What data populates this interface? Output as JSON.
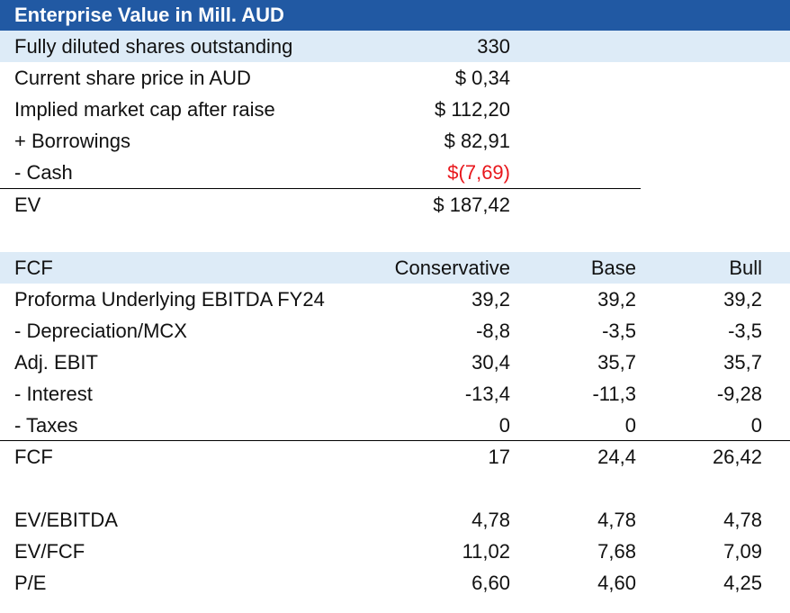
{
  "ev_section": {
    "title": "Enterprise Value in Mill. AUD",
    "rows": [
      {
        "label": "Fully diluted shares outstanding",
        "value": "330"
      },
      {
        "label": "Current share price in AUD",
        "value": "$ 0,34"
      },
      {
        "label": "Implied market cap after raise",
        "value": "$ 112,20"
      },
      {
        "label": "+ Borrowings",
        "value": "$ 82,91"
      },
      {
        "label": "- Cash",
        "value": "$(7,69)"
      }
    ],
    "total": {
      "label": "EV",
      "value": "$ 187,42"
    }
  },
  "fcf_section": {
    "header": {
      "label": "FCF",
      "col1": "Conservative",
      "col2": "Base",
      "col3": "Bull"
    },
    "rows": [
      {
        "label": "Proforma Underlying EBITDA FY24",
        "c1": "39,2",
        "c2": "39,2",
        "c3": "39,2"
      },
      {
        "label": "- Depreciation/MCX",
        "c1": "-8,8",
        "c2": "-3,5",
        "c3": "-3,5"
      },
      {
        "label": "Adj. EBIT",
        "c1": "30,4",
        "c2": "35,7",
        "c3": "35,7"
      },
      {
        "label": "- Interest",
        "c1": "-13,4",
        "c2": "-11,3",
        "c3": "-9,28"
      },
      {
        "label": "- Taxes",
        "c1": "0",
        "c2": "0",
        "c3": "0"
      }
    ],
    "total": {
      "label": "FCF",
      "c1": "17",
      "c2": "24,4",
      "c3": "26,42"
    }
  },
  "multiples": {
    "rows": [
      {
        "label": "EV/EBITDA",
        "c1": "4,78",
        "c2": "4,78",
        "c3": "4,78"
      },
      {
        "label": "EV/FCF",
        "c1": "11,02",
        "c2": "7,68",
        "c3": "7,09"
      },
      {
        "label": "P/E",
        "c1": "6,60",
        "c2": "4,60",
        "c3": "4,25"
      }
    ]
  },
  "colors": {
    "title_bg": "#2159a3",
    "shade": "#ddebf7",
    "negative": "#e8171c"
  }
}
